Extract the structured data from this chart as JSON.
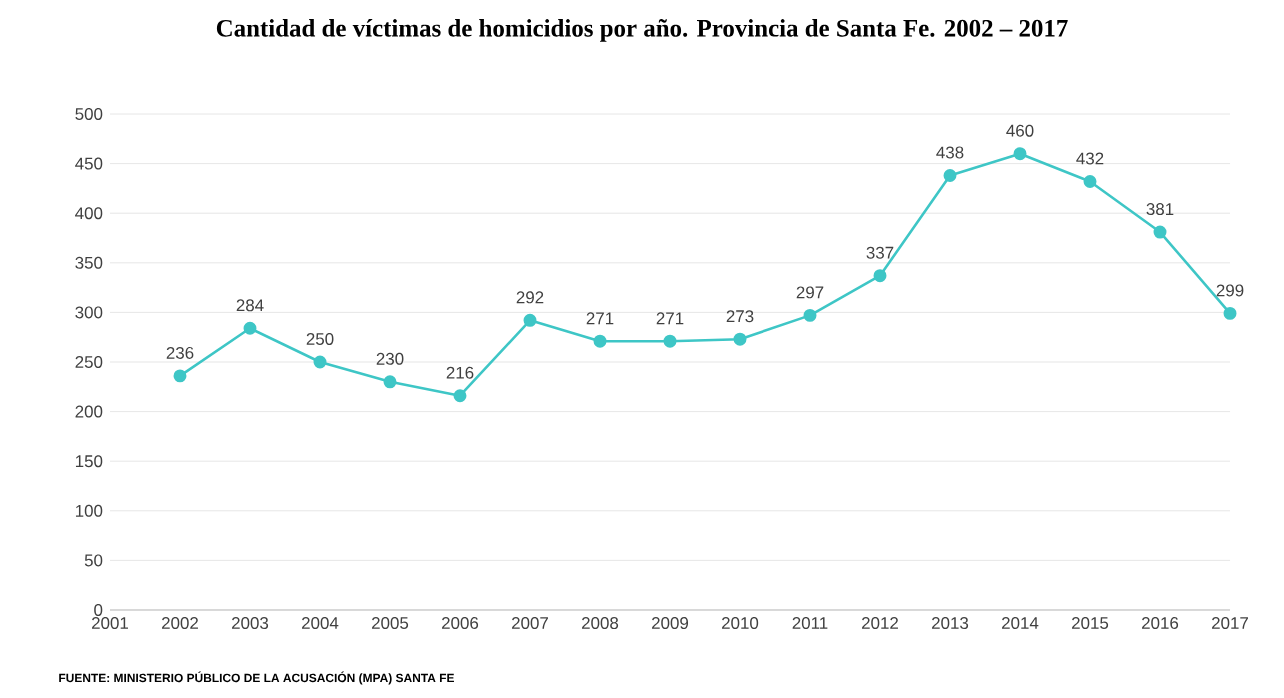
{
  "chart_data": {
    "type": "line",
    "title": "Cantidad de víctimas de homicidios por año. Provincia de Santa Fe. 2002 – 2017",
    "x": [
      2002,
      2003,
      2004,
      2005,
      2006,
      2007,
      2008,
      2009,
      2010,
      2011,
      2012,
      2013,
      2014,
      2015,
      2016,
      2017
    ],
    "values": [
      236,
      284,
      250,
      230,
      216,
      292,
      271,
      271,
      273,
      297,
      337,
      438,
      460,
      432,
      381,
      299
    ],
    "color": "#3ec6c6",
    "xlim": [
      2001,
      2017
    ],
    "xticks": [
      2001,
      2002,
      2003,
      2004,
      2005,
      2006,
      2007,
      2008,
      2009,
      2010,
      2011,
      2012,
      2013,
      2014,
      2015,
      2016,
      2017
    ],
    "ylim": [
      0,
      500
    ],
    "yticks": [
      0,
      50,
      100,
      150,
      200,
      250,
      300,
      350,
      400,
      450,
      500
    ],
    "grid": "y",
    "marker": "circle",
    "line_style": "solid",
    "data_labels": true,
    "annotations": [
      "FUENTE: MINISTERIO PÚBLICO DE LA ACUSACIÓN (MPA) SANTA FE"
    ]
  }
}
